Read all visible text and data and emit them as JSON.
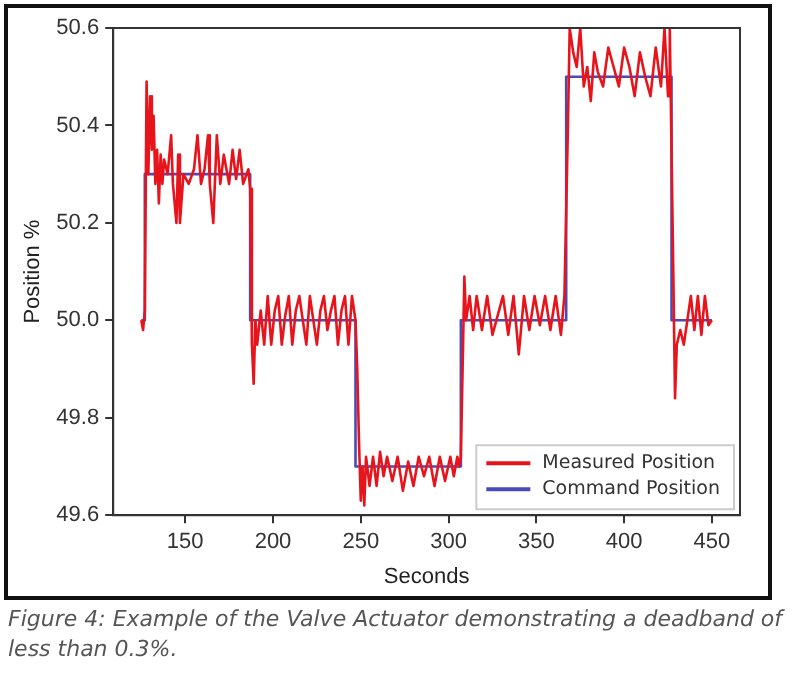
{
  "chart_data": {
    "type": "line",
    "xlabel": "Seconds",
    "ylabel": "Position %",
    "annotations": [
      "Figure 4: Example of the Valve Actuator demonstrating a deadband of less than 0.3%."
    ],
    "xlim": [
      109,
      466
    ],
    "xticks": [
      150,
      200,
      250,
      300,
      350,
      400,
      450
    ],
    "ylim": [
      49.6,
      50.6
    ],
    "yticks": [
      {
        "value": 49.6,
        "label": "49.6"
      },
      {
        "value": 49.8,
        "label": "49.8"
      },
      {
        "value": 50.0,
        "label": "50.0"
      },
      {
        "value": 50.2,
        "label": "50.2"
      },
      {
        "value": 50.4,
        "label": "50.4"
      },
      {
        "value": 50.6,
        "label": "50.6"
      }
    ],
    "grid": false,
    "legend": "bottom right",
    "marker": "none",
    "line_style": "solid",
    "series": [
      {
        "name": "Measured Position",
        "color": "#e8141c",
        "x": [
          125,
          126,
          127,
          128,
          129,
          130,
          131,
          132,
          133,
          134,
          135,
          136,
          137,
          138,
          140,
          142,
          143,
          145,
          146,
          147,
          149,
          152,
          155,
          157,
          159,
          161,
          163,
          164,
          166,
          168,
          170,
          172,
          175,
          177,
          179,
          181,
          183,
          186,
          187,
          188,
          189,
          190,
          191,
          193,
          195,
          197,
          199,
          201,
          203,
          205,
          207,
          209,
          211,
          213,
          215,
          217,
          219,
          221,
          223,
          225,
          227,
          229,
          231,
          233,
          235,
          237,
          239,
          241,
          243,
          245,
          247,
          248,
          249,
          250,
          251,
          252,
          253,
          255,
          257,
          259,
          261,
          263,
          265,
          268,
          271,
          274,
          277,
          280,
          283,
          286,
          289,
          292,
          295,
          298,
          301,
          303,
          305,
          306,
          307,
          308,
          309,
          310,
          312,
          314,
          316,
          319,
          322,
          325,
          328,
          331,
          334,
          337,
          340,
          343,
          346,
          349,
          352,
          355,
          358,
          361,
          364,
          366,
          368,
          369,
          371,
          373,
          375,
          377,
          379,
          381,
          383,
          385,
          388,
          391,
          394,
          397,
          400,
          403,
          406,
          409,
          412,
          415,
          418,
          421,
          423,
          425,
          426,
          427,
          428,
          429,
          430,
          432,
          434,
          436,
          438,
          440,
          442,
          444,
          446,
          448,
          450
        ],
        "values": [
          50.0,
          49.98,
          50.02,
          50.49,
          50.3,
          50.46,
          50.35,
          50.42,
          50.28,
          50.35,
          50.24,
          50.34,
          50.28,
          50.33,
          50.3,
          50.38,
          50.28,
          50.2,
          50.34,
          50.2,
          50.3,
          50.28,
          50.31,
          50.38,
          50.28,
          50.31,
          50.38,
          50.28,
          50.2,
          50.38,
          50.28,
          50.34,
          50.28,
          50.35,
          50.29,
          50.35,
          50.28,
          50.31,
          50.27,
          49.95,
          49.87,
          50.0,
          49.95,
          50.02,
          49.95,
          50.05,
          49.95,
          50.02,
          50.05,
          49.95,
          50.01,
          50.05,
          49.95,
          50.02,
          50.05,
          50.0,
          49.95,
          50.05,
          50.0,
          49.95,
          50.02,
          50.05,
          49.98,
          50.02,
          50.05,
          49.95,
          50.02,
          50.05,
          49.95,
          50.05,
          50.0,
          49.9,
          49.75,
          49.63,
          49.7,
          49.62,
          49.72,
          49.66,
          49.72,
          49.66,
          49.73,
          49.68,
          49.72,
          49.67,
          49.72,
          49.65,
          49.71,
          49.66,
          49.72,
          49.68,
          49.72,
          49.66,
          49.72,
          49.67,
          49.72,
          49.68,
          49.72,
          49.7,
          49.72,
          49.9,
          50.09,
          50.0,
          50.05,
          49.98,
          50.05,
          49.98,
          50.05,
          49.97,
          50.01,
          50.05,
          49.97,
          50.05,
          49.93,
          50.05,
          49.98,
          50.05,
          49.99,
          50.05,
          49.98,
          50.05,
          49.97,
          50.05,
          50.4,
          50.6,
          50.55,
          50.52,
          50.6,
          50.48,
          50.52,
          50.45,
          50.55,
          50.51,
          50.48,
          50.56,
          50.52,
          50.48,
          50.56,
          50.52,
          50.46,
          50.55,
          50.5,
          50.46,
          50.56,
          50.48,
          50.6,
          50.46,
          50.6,
          50.35,
          50.1,
          49.84,
          49.95,
          49.98,
          49.95,
          50.0,
          50.05,
          49.98,
          50.05,
          49.97,
          50.05,
          49.99,
          50.0
        ]
      },
      {
        "name": "Command Position",
        "color": "#4a4ab8",
        "type": "step",
        "x": [
          125,
          127,
          187,
          247,
          307,
          367,
          427,
          450
        ],
        "values": [
          50.0,
          50.3,
          50.0,
          49.7,
          50.0,
          50.5,
          50.0,
          50.0
        ]
      }
    ]
  }
}
